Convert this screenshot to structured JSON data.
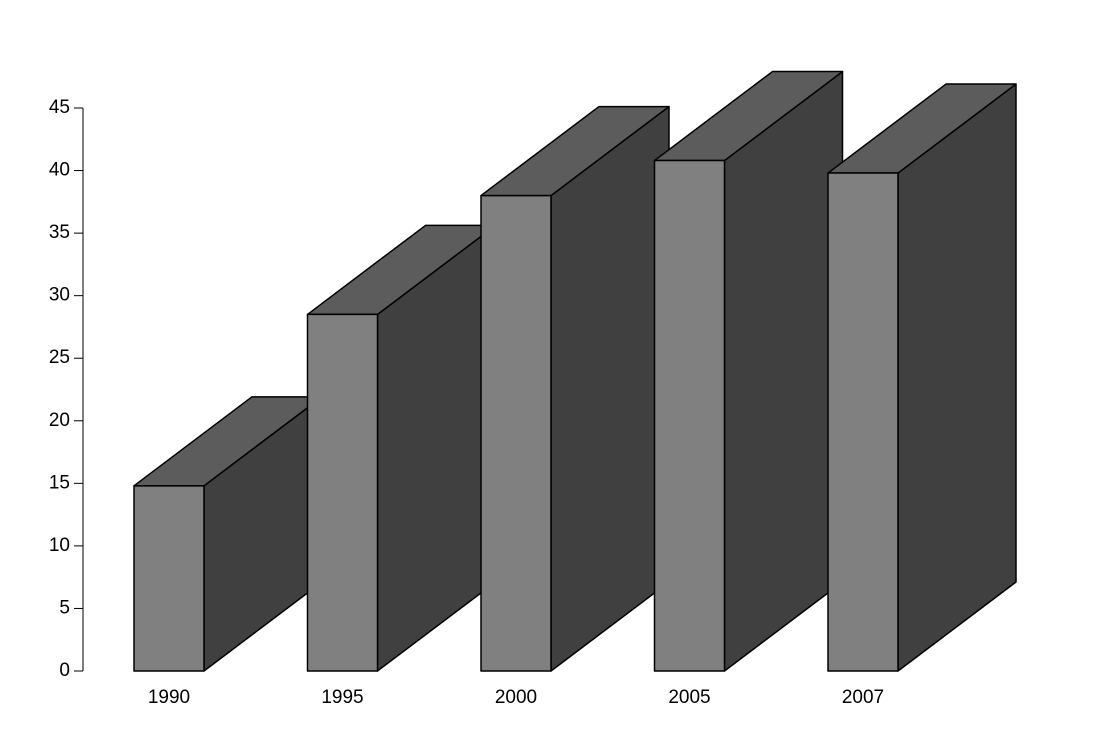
{
  "chart_data": {
    "type": "bar3d",
    "categories": [
      "1990",
      "1995",
      "2000",
      "2005",
      "2007"
    ],
    "values": [
      14.8,
      28.5,
      38.0,
      40.8,
      39.8
    ],
    "colors": {
      "front": "#808080",
      "top": "#5c5c5c",
      "side": "#404040"
    },
    "ylim": [
      0,
      45
    ],
    "yticks": [
      0,
      5,
      10,
      15,
      20,
      25,
      30,
      35,
      40,
      45
    ]
  }
}
